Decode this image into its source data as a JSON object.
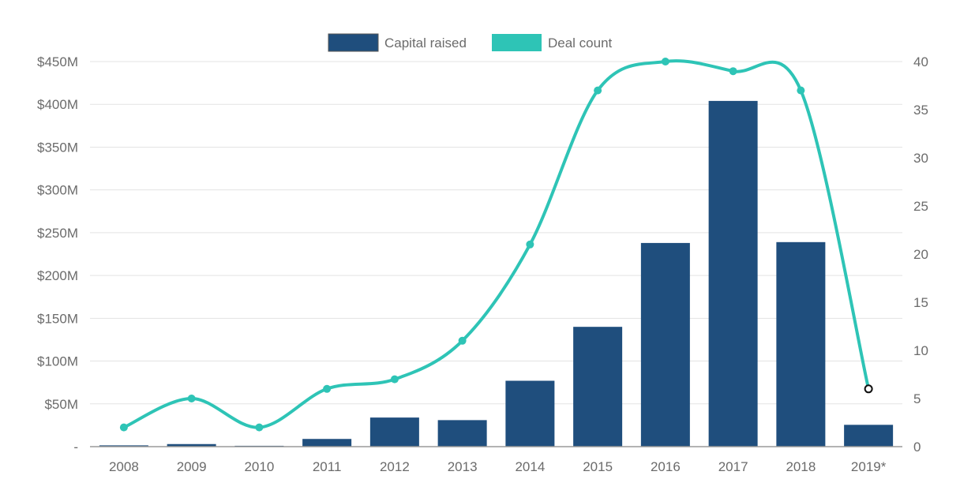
{
  "chart_data": {
    "type": "bar",
    "categories": [
      "2008",
      "2009",
      "2010",
      "2011",
      "2012",
      "2013",
      "2014",
      "2015",
      "2016",
      "2017",
      "2018",
      "2019*"
    ],
    "series": [
      {
        "name": "Capital raised",
        "chart": "bar",
        "axis": "left",
        "color": "#1f4e7d",
        "values": [
          1.5,
          3,
          1,
          9,
          34,
          31,
          77,
          140,
          238,
          404,
          239,
          25.5
        ]
      },
      {
        "name": "Deal count",
        "chart": "line",
        "axis": "right",
        "color": "#2ec4b6",
        "values": [
          2,
          5,
          2,
          6,
          7,
          11,
          21,
          37,
          40,
          39,
          37,
          6
        ]
      }
    ],
    "y_left": {
      "lim": [
        0,
        450
      ],
      "ticks": [
        0,
        50,
        100,
        150,
        200,
        250,
        300,
        350,
        400,
        450
      ],
      "tick_labels": [
        "-",
        "$50M",
        "$100M",
        "$150M",
        "$200M",
        "$250M",
        "$300M",
        "$350M",
        "$400M",
        "$450M"
      ]
    },
    "y_right": {
      "lim": [
        0,
        40
      ],
      "ticks": [
        0,
        5,
        10,
        15,
        20,
        25,
        30,
        35,
        40
      ],
      "tick_labels": [
        "0",
        "5",
        "10",
        "15",
        "20",
        "25",
        "30",
        "35",
        "40"
      ]
    },
    "legend": {
      "position": "top-center",
      "entries": [
        "Capital raised",
        "Deal count"
      ]
    },
    "grid": true,
    "last_point_marker": "hollow"
  }
}
